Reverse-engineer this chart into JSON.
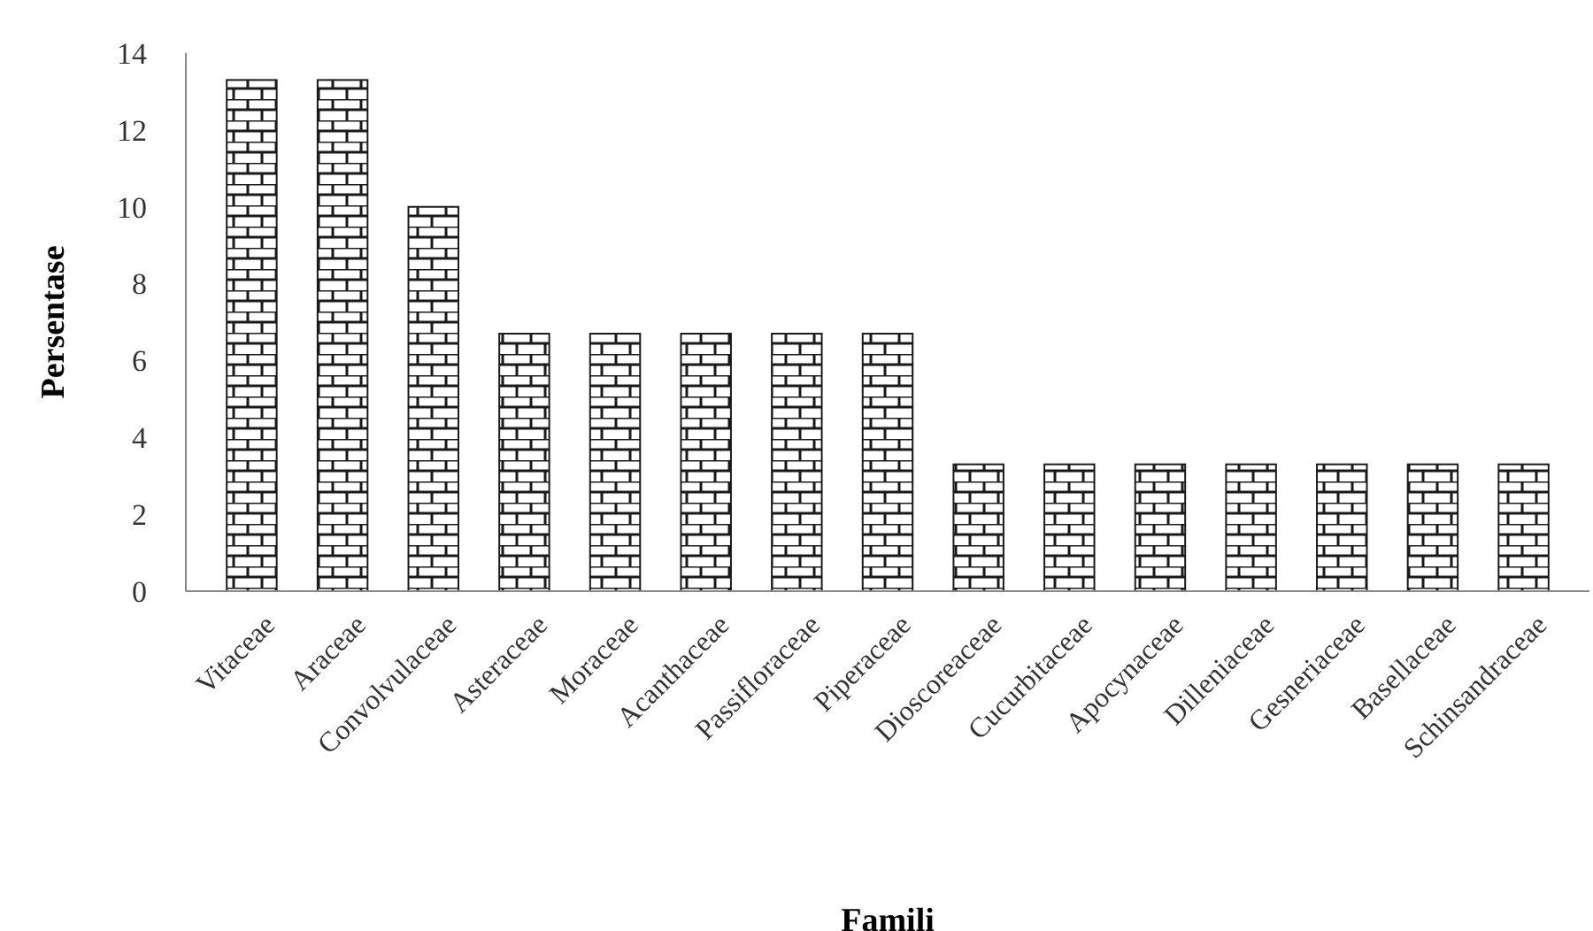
{
  "chart_data": {
    "type": "bar",
    "xlabel": "Famili",
    "ylabel": "Persentase",
    "categories": [
      "Vitaceae",
      "Araceae",
      "Convolvulaceae",
      "Asteraceae",
      "Moraceae",
      "Acanthaceae",
      "Passifloraceae",
      "Piperaceae",
      "Dioscoreaceae",
      "Cucurbitaceae",
      "Apocynaceae",
      "Dilleniaceae",
      "Gesneriaceae",
      "Basellaceae",
      "Schinsandraceae"
    ],
    "values": [
      13.3,
      13.3,
      10,
      6.7,
      6.7,
      6.7,
      6.7,
      6.7,
      3.3,
      3.3,
      3.3,
      3.3,
      3.3,
      3.3,
      3.3
    ],
    "color": "#1a1a1a",
    "ylim": [
      0,
      14
    ],
    "yticks": [
      0,
      2,
      4,
      6,
      8,
      10,
      12,
      14
    ],
    "grid": false
  }
}
